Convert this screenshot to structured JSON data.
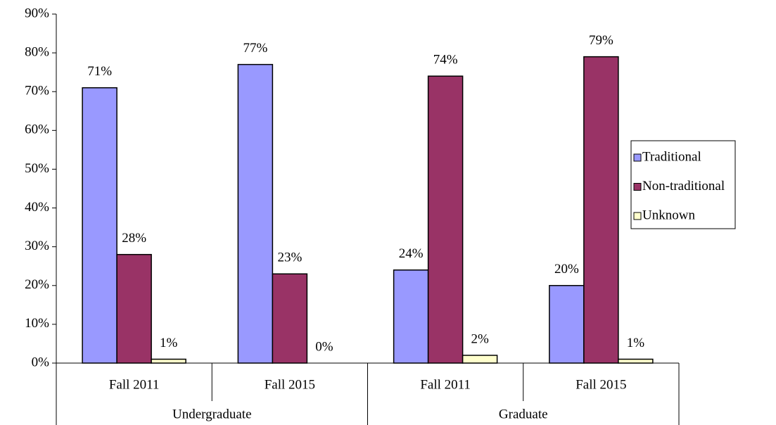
{
  "chart_data": {
    "type": "bar",
    "categories": [
      "Fall 2011",
      "Fall 2015",
      "Fall 2011",
      "Fall 2015"
    ],
    "group_labels": [
      "Undergraduate",
      "Graduate"
    ],
    "series": [
      {
        "name": "Traditional",
        "color": "#9999ff",
        "values": [
          71,
          77,
          24,
          20
        ],
        "value_labels": [
          "71%",
          "77%",
          "24%",
          "20%"
        ]
      },
      {
        "name": "Non-traditional",
        "color": "#993366",
        "values": [
          28,
          23,
          74,
          79
        ],
        "value_labels": [
          "28%",
          "23%",
          "74%",
          "79%"
        ]
      },
      {
        "name": "Unknown",
        "color": "#ffffcc",
        "values": [
          1,
          0,
          2,
          1
        ],
        "value_labels": [
          "1%",
          "0%",
          "2%",
          "1%"
        ]
      }
    ],
    "ylim": [
      0,
      90
    ],
    "yticks": [
      {
        "value": 0,
        "label": "0%"
      },
      {
        "value": 10,
        "label": "10%"
      },
      {
        "value": 20,
        "label": "20%"
      },
      {
        "value": 30,
        "label": "30%"
      },
      {
        "value": 40,
        "label": "40%"
      },
      {
        "value": 50,
        "label": "50%"
      },
      {
        "value": 60,
        "label": "60%"
      },
      {
        "value": 70,
        "label": "70%"
      },
      {
        "value": 80,
        "label": "80%"
      },
      {
        "value": 90,
        "label": "90%"
      }
    ],
    "grid": false,
    "legend": "right"
  }
}
